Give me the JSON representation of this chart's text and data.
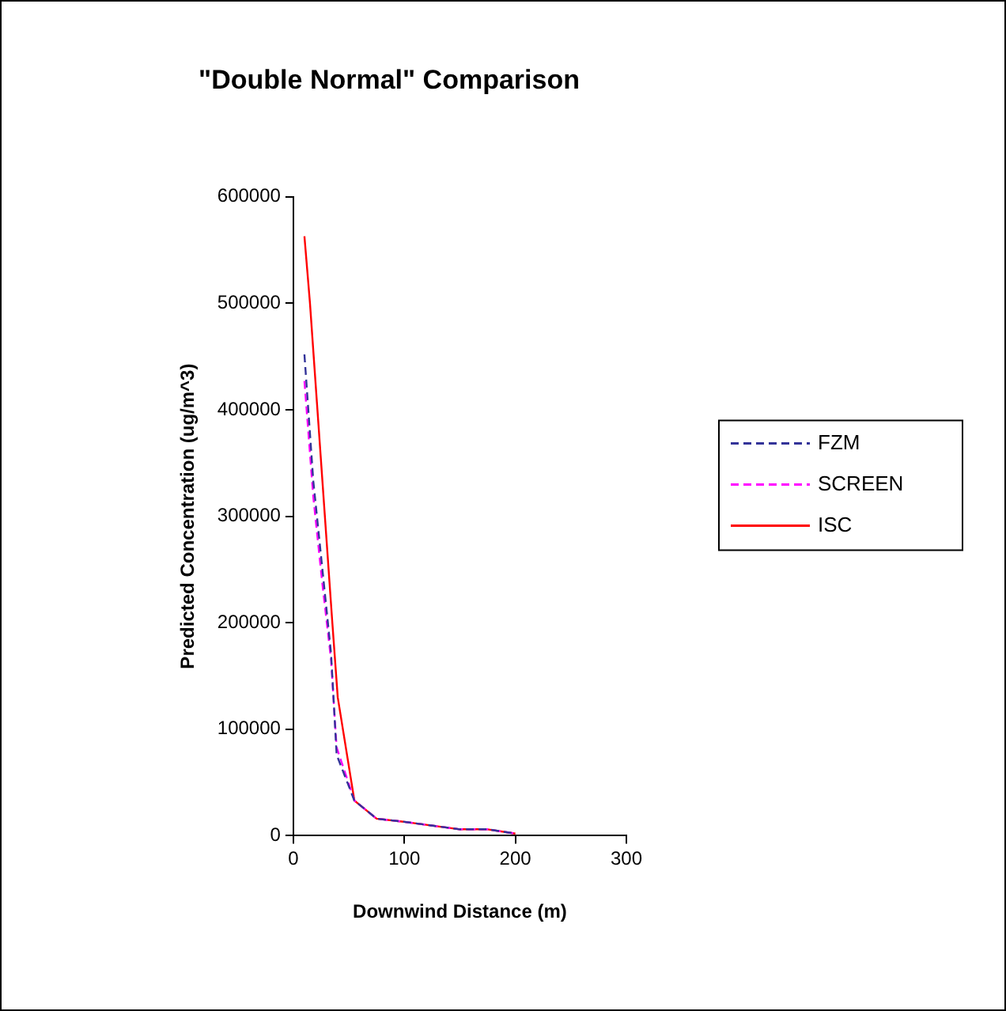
{
  "chart_data": {
    "type": "line",
    "title": "\"Double Normal\" Comparison",
    "xlabel": "Downwind Distance (m)",
    "ylabel": "Predicted Concentration (ug/m^3)",
    "xlim": [
      0,
      300
    ],
    "xticks": [
      0,
      100,
      200,
      300
    ],
    "ylim": [
      0,
      600000
    ],
    "yticks": [
      0,
      100000,
      200000,
      300000,
      400000,
      500000,
      600000
    ],
    "grid": false,
    "legend": "right",
    "marker": "none",
    "series": [
      {
        "name": "FZM",
        "color": "#333399",
        "line_style": "dashed",
        "x": [
          10,
          18,
          27,
          34,
          39,
          55,
          75,
          100,
          150,
          175,
          200
        ],
        "values": [
          452000,
          333000,
          242000,
          171000,
          76000,
          33000,
          16000,
          13000,
          6000,
          6000,
          2000
        ]
      },
      {
        "name": "SCREEN",
        "color": "#ff00ff",
        "line_style": "dashed",
        "x": [
          10,
          18,
          26,
          34,
          39,
          55,
          75,
          100,
          150,
          175,
          200
        ],
        "values": [
          427000,
          318000,
          238000,
          165000,
          83000,
          33000,
          16000,
          13000,
          6000,
          6000,
          2000
        ]
      },
      {
        "name": "ISC",
        "color": "#ff0000",
        "line_style": "solid",
        "x": [
          10,
          15,
          35,
          40,
          55,
          75,
          100,
          150,
          175,
          200
        ],
        "values": [
          563000,
          500000,
          202000,
          130000,
          33000,
          16000,
          13000,
          6000,
          6000,
          2000
        ]
      }
    ]
  }
}
